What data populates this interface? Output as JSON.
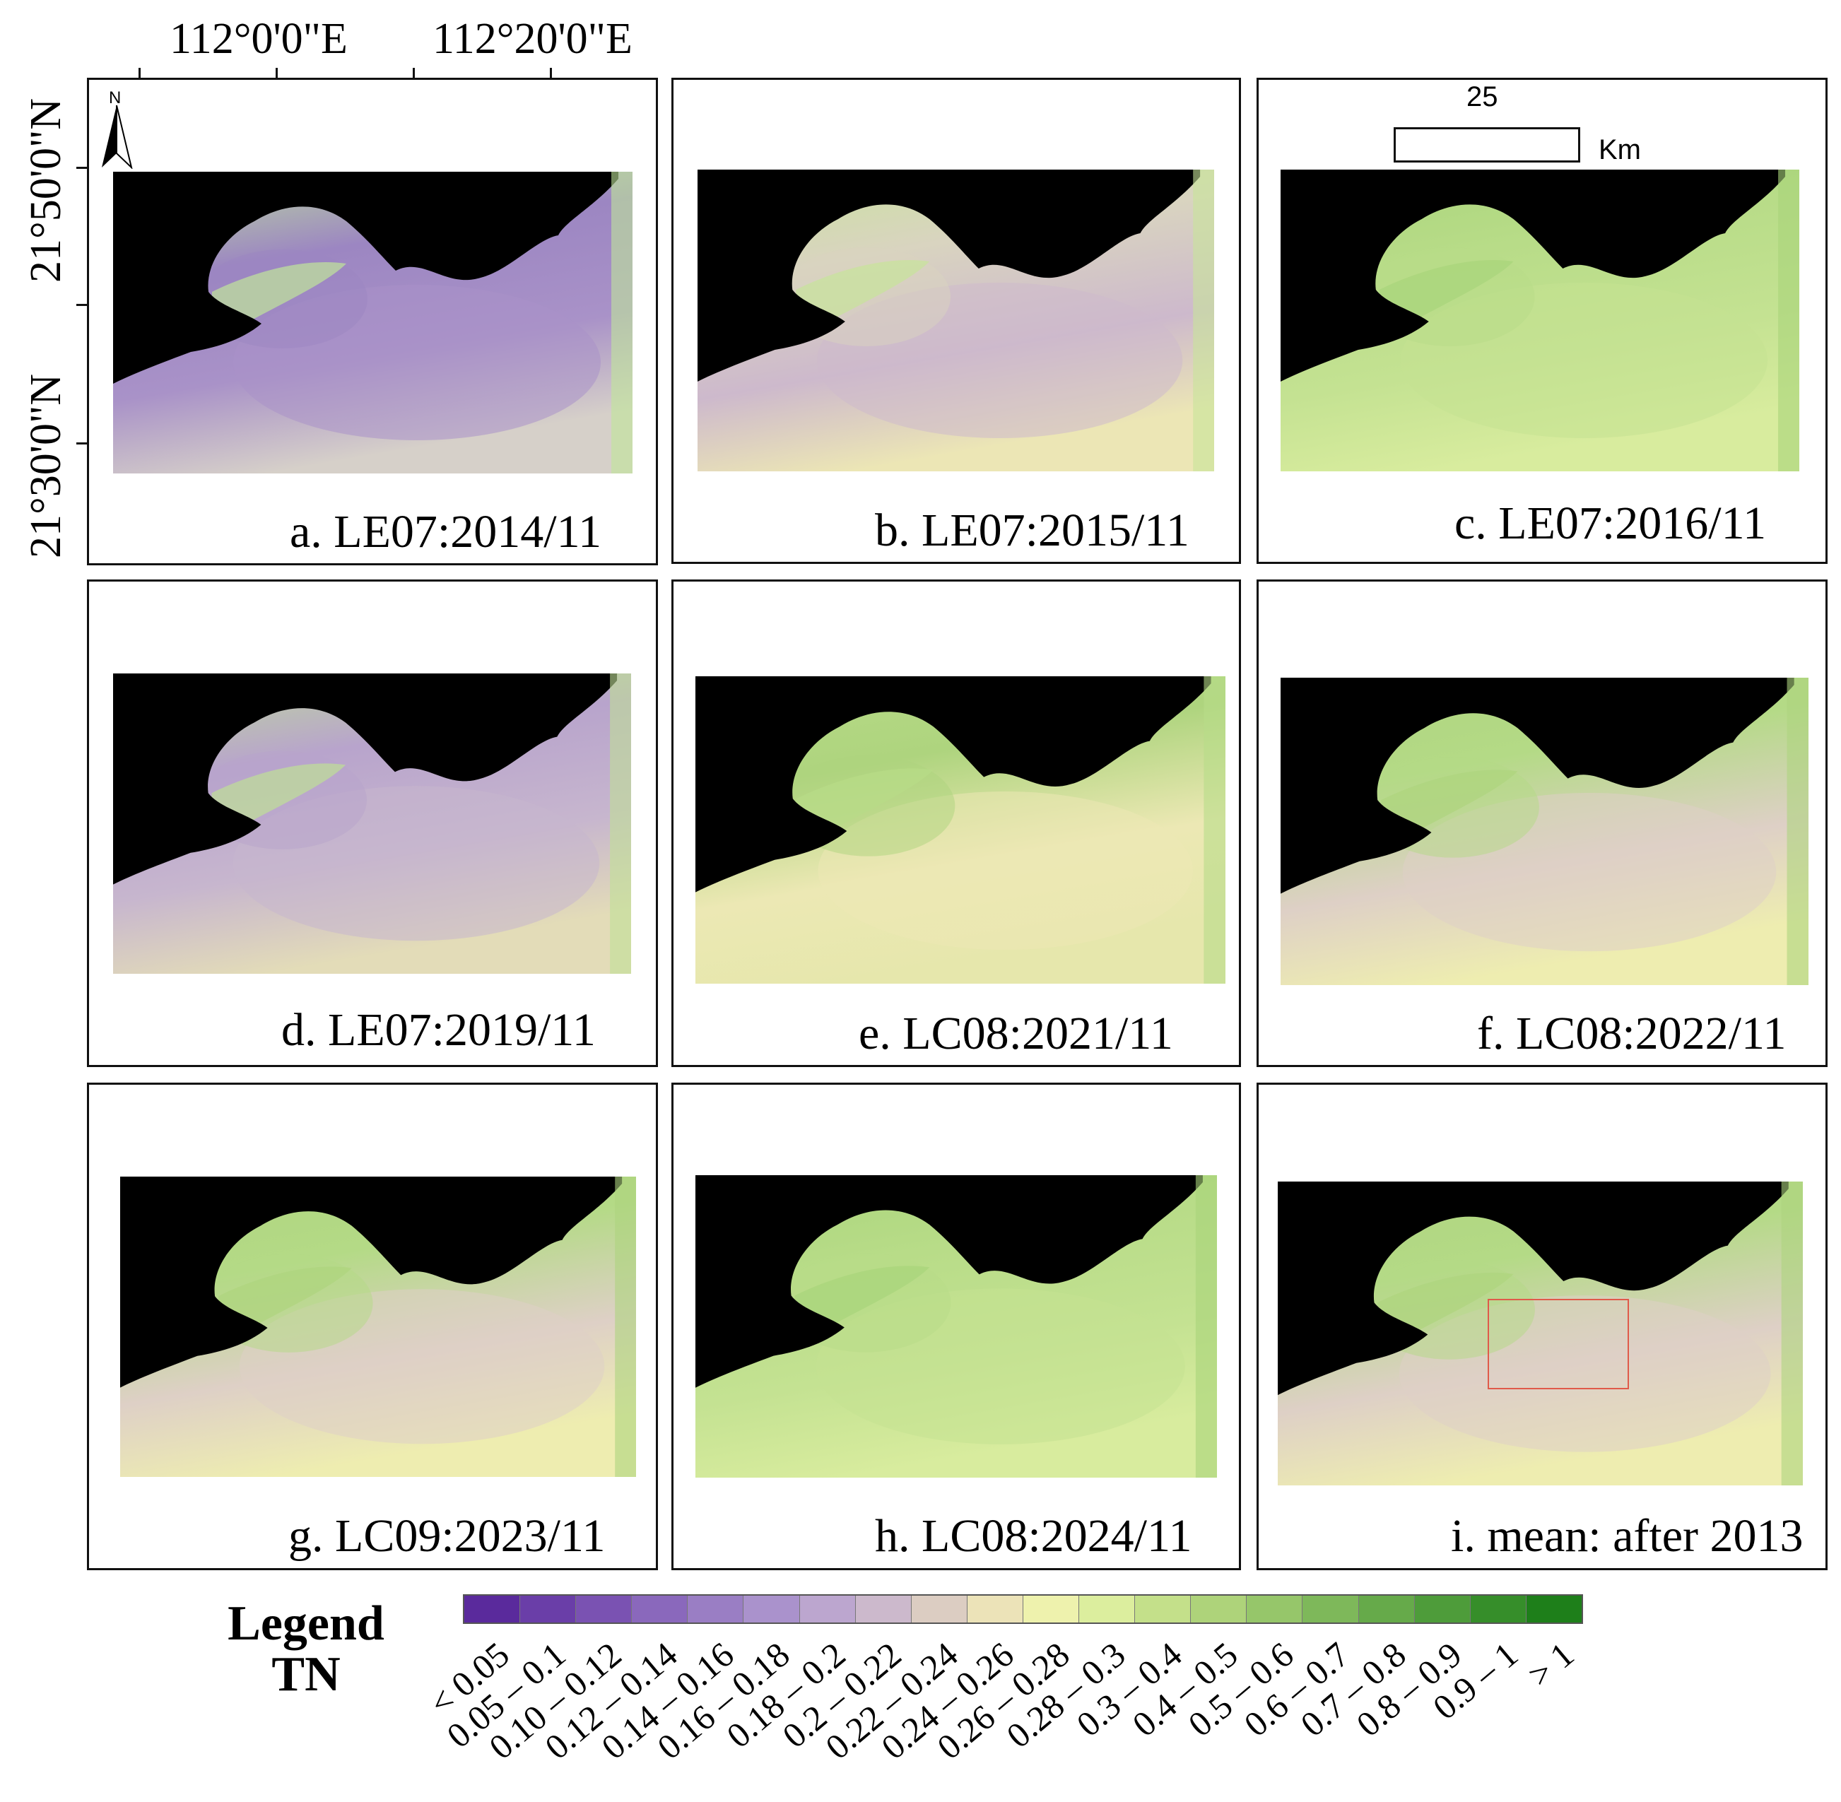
{
  "axes": {
    "lon_labels": [
      "112°0'0\"E",
      "112°20'0\"E"
    ],
    "lat_labels": [
      "21°50'0\"N",
      "21°30'0\"N"
    ]
  },
  "north_arrow": {
    "label": "N",
    "icon": "north-arrow-icon"
  },
  "scale_bar": {
    "value": "25",
    "unit": "Km"
  },
  "panels": [
    {
      "caption": "a.  LE07:2014/11",
      "palette": "purple"
    },
    {
      "caption": "b.  LE07:2015/11",
      "palette": "cream-purple"
    },
    {
      "caption": "c.  LE07:2016/11",
      "palette": "green"
    },
    {
      "caption": "d.  LE07:2019/11",
      "palette": "purple-cream"
    },
    {
      "caption": "e.  LC08:2021/11",
      "palette": "green-cream"
    },
    {
      "caption": "f.  LC08:2022/11",
      "palette": "green-pink"
    },
    {
      "caption": "g.  LC09:2023/11",
      "palette": "green-pink"
    },
    {
      "caption": "h.  LC08:2024/11",
      "palette": "green"
    },
    {
      "caption": "i.  mean: after 2013",
      "palette": "green-pink"
    }
  ],
  "legend": {
    "title_line1": "Legend",
    "title_line2": "TN",
    "classes": [
      {
        "label": "< 0.05",
        "color": "#5a2a9c"
      },
      {
        "label": "0.05 – 0.1",
        "color": "#6a3ea8"
      },
      {
        "label": "0.10 – 0.12",
        "color": "#7a52b2"
      },
      {
        "label": "0.12 – 0.14",
        "color": "#8a68bc"
      },
      {
        "label": "0.14 – 0.16",
        "color": "#9a7ec4"
      },
      {
        "label": "0.16 – 0.18",
        "color": "#aa92cc"
      },
      {
        "label": "0.18 – 0.2",
        "color": "#bca6cf"
      },
      {
        "label": "0.2 – 0.22",
        "color": "#ccb9cc"
      },
      {
        "label": "0.22 – 0.24",
        "color": "#dccdc2"
      },
      {
        "label": "0.24 – 0.26",
        "color": "#ece3b8"
      },
      {
        "label": "0.26 – 0.28",
        "color": "#eef2ad"
      },
      {
        "label": "0.28 – 0.3",
        "color": "#dcee9e"
      },
      {
        "label": "0.3 – 0.4",
        "color": "#c4e08a"
      },
      {
        "label": "0.4 – 0.5",
        "color": "#aed37a"
      },
      {
        "label": "0.5 – 0.6",
        "color": "#96c66a"
      },
      {
        "label": "0.6 – 0.7",
        "color": "#7eb85a"
      },
      {
        "label": "0.7 – 0.8",
        "color": "#66aa4a"
      },
      {
        "label": "0.8 – 0.9",
        "color": "#4e9c3a"
      },
      {
        "label": "0.9 – 1",
        "color": "#368e2a"
      },
      {
        "label": "> 1",
        "color": "#1e7f1a"
      }
    ]
  },
  "colors": {
    "land": "#000000",
    "highlight_box": "#e05a4a"
  }
}
